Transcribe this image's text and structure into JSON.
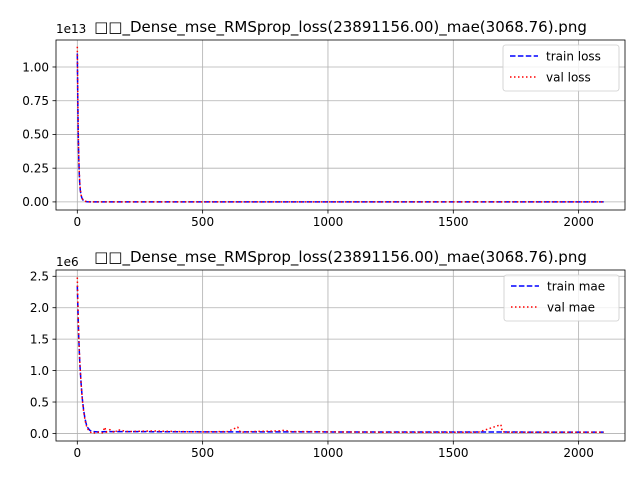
{
  "chart_data": [
    {
      "type": "line",
      "title": "□□_Dense_mse_RMSprop_loss(23891156.00)_mae(3068.76).png",
      "offset_text": "1e13",
      "xlim": [
        -85,
        2185
      ],
      "ylim": [
        -0.06,
        1.2
      ],
      "xticks": [
        0,
        500,
        1000,
        1500,
        2000
      ],
      "xtick_labels": [
        "0",
        "500",
        "1000",
        "1500",
        "2000"
      ],
      "yticks": [
        0,
        0.25,
        0.5,
        0.75,
        1.0
      ],
      "ytick_labels": [
        "0.00",
        "0.25",
        "0.50",
        "0.75",
        "1.00"
      ],
      "grid": true,
      "legend_position": "upper right",
      "series": [
        {
          "name": "train loss",
          "color": "#0000ff",
          "style": "dashed",
          "x": [
            0,
            1,
            2,
            3,
            4,
            5,
            6,
            8,
            10,
            12,
            15,
            18,
            22,
            26,
            30,
            40,
            50,
            70,
            100,
            200,
            500,
            1000,
            1500,
            2000,
            2100
          ],
          "y": [
            1.1,
            0.93,
            0.74,
            0.6,
            0.48,
            0.39,
            0.31,
            0.2,
            0.13,
            0.085,
            0.05,
            0.03,
            0.016,
            0.008,
            0.004,
            0.001,
            0.0003,
            0.0001,
            0,
            0,
            0,
            0,
            0,
            0,
            0
          ]
        },
        {
          "name": "val loss",
          "color": "#ff0000",
          "style": "dotted",
          "x": [
            0,
            1,
            2,
            3,
            4,
            5,
            6,
            8,
            10,
            12,
            15,
            18,
            22,
            26,
            30,
            40,
            50,
            70,
            100,
            200,
            500,
            1000,
            1500,
            2000,
            2100
          ],
          "y": [
            1.15,
            0.97,
            0.77,
            0.62,
            0.5,
            0.4,
            0.32,
            0.21,
            0.14,
            0.09,
            0.052,
            0.031,
            0.017,
            0.009,
            0.005,
            0.0012,
            0.0004,
            0.0001,
            0,
            0,
            0,
            0,
            0,
            0,
            0
          ]
        }
      ]
    },
    {
      "type": "line",
      "title": "□□_Dense_mse_RMSprop_loss(23891156.00)_mae(3068.76).png",
      "offset_text": "1e6",
      "xlim": [
        -85,
        2185
      ],
      "ylim": [
        -0.12,
        2.6
      ],
      "xticks": [
        0,
        500,
        1000,
        1500,
        2000
      ],
      "xtick_labels": [
        "0",
        "500",
        "1000",
        "1500",
        "2000"
      ],
      "yticks": [
        0,
        0.5,
        1.0,
        1.5,
        2.0,
        2.5
      ],
      "ytick_labels": [
        "0.0",
        "0.5",
        "1.0",
        "1.5",
        "2.0",
        "2.5"
      ],
      "grid": true,
      "legend_position": "upper right",
      "series": [
        {
          "name": "train mae",
          "color": "#0000ff",
          "style": "dashed",
          "x": [
            0,
            1,
            2,
            4,
            6,
            8,
            10,
            15,
            20,
            25,
            30,
            35,
            40,
            50,
            60,
            80,
            100,
            150,
            200,
            300,
            400,
            500,
            600,
            700,
            800,
            900,
            1000,
            1200,
            1400,
            1600,
            1800,
            2000,
            2100
          ],
          "y": [
            2.35,
            2.2,
            2.05,
            1.75,
            1.5,
            1.3,
            1.12,
            0.8,
            0.55,
            0.38,
            0.25,
            0.16,
            0.1,
            0.05,
            0.03,
            0.025,
            0.028,
            0.03,
            0.03,
            0.028,
            0.027,
            0.026,
            0.026,
            0.025,
            0.025,
            0.025,
            0.024,
            0.024,
            0.023,
            0.023,
            0.022,
            0.022,
            0.022
          ]
        },
        {
          "name": "val mae",
          "color": "#ff0000",
          "style": "dotted",
          "x": [
            0,
            1,
            2,
            4,
            6,
            8,
            10,
            15,
            20,
            25,
            30,
            35,
            40,
            50,
            60,
            80,
            100,
            110,
            115,
            130,
            150,
            160,
            200,
            300,
            400,
            500,
            600,
            640,
            650,
            700,
            800,
            830,
            850,
            900,
            1000,
            1200,
            1400,
            1600,
            1690,
            1695,
            1710,
            1800,
            2000,
            2100
          ],
          "y": [
            2.48,
            2.3,
            2.12,
            1.8,
            1.53,
            1.32,
            1.13,
            0.8,
            0.54,
            0.36,
            0.23,
            0.14,
            0.08,
            0.03,
            0.0,
            0.02,
            0.01,
            0.1,
            0.02,
            0.06,
            0.01,
            0.06,
            0.03,
            0.04,
            0.03,
            0.025,
            0.03,
            0.1,
            0.02,
            0.03,
            0.04,
            0.05,
            0.03,
            0.03,
            0.025,
            0.02,
            0.02,
            0.02,
            0.14,
            0.03,
            0.02,
            0.02,
            0.02,
            0.02
          ]
        }
      ]
    }
  ]
}
